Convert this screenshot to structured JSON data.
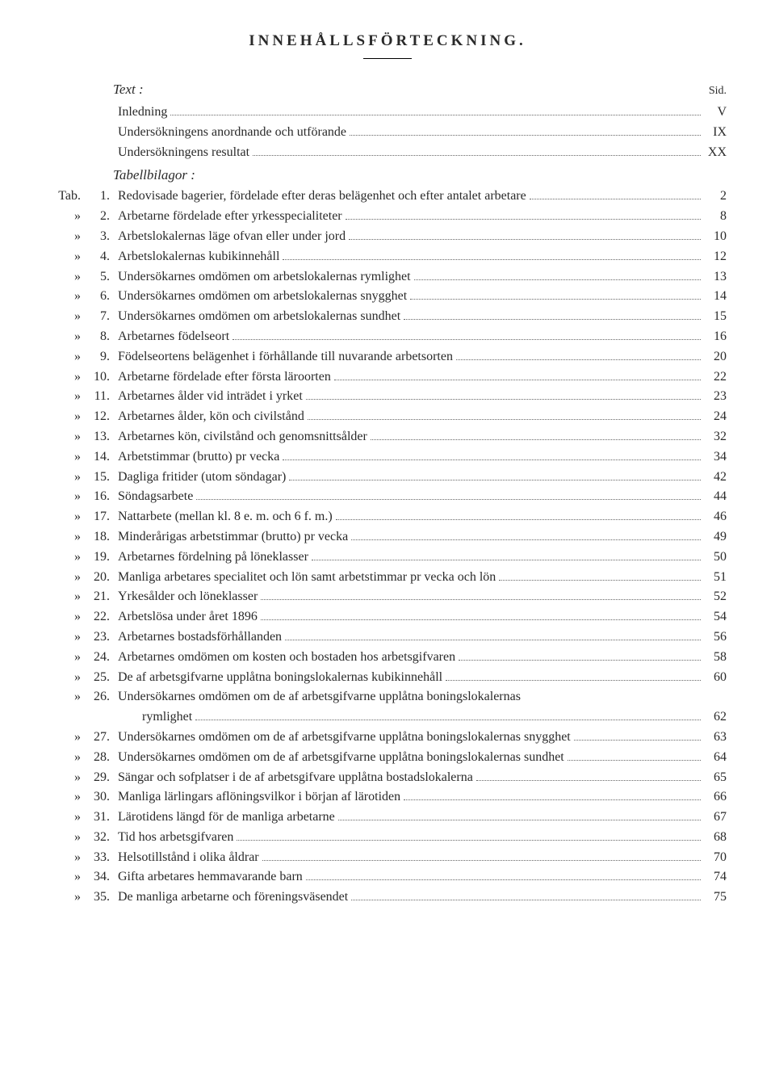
{
  "title": "INNEHÅLLSFÖRTECKNING.",
  "text_heading": "Text :",
  "sid_label": "Sid.",
  "text_entries": [
    {
      "label": "Inledning",
      "page": "V"
    },
    {
      "label": "Undersökningens anordnande och utförande",
      "page": "IX"
    },
    {
      "label": "Undersökningens resultat",
      "page": "XX"
    }
  ],
  "tabell_heading": "Tabellbilagor :",
  "tab_prefix_first": "Tab.",
  "tab_prefix_rest": "»",
  "tabs": [
    {
      "n": "1.",
      "label": "Redovisade bagerier, fördelade efter deras belägenhet och efter antalet arbetare",
      "page": "2"
    },
    {
      "n": "2.",
      "label": "Arbetarne fördelade efter yrkesspecialiteter",
      "page": "8"
    },
    {
      "n": "3.",
      "label": "Arbetslokalernas läge ofvan eller under jord",
      "page": "10"
    },
    {
      "n": "4.",
      "label": "Arbetslokalernas kubikinnehåll",
      "page": "12"
    },
    {
      "n": "5.",
      "label": "Undersökarnes omdömen om arbetslokalernas rymlighet",
      "page": "13"
    },
    {
      "n": "6.",
      "label": "Undersökarnes omdömen om arbetslokalernas snygghet",
      "page": "14"
    },
    {
      "n": "7.",
      "label": "Undersökarnes omdömen om arbetslokalernas sundhet",
      "page": "15"
    },
    {
      "n": "8.",
      "label": "Arbetarnes födelseort",
      "page": "16"
    },
    {
      "n": "9.",
      "label": "Födelseortens belägenhet i förhållande till nuvarande arbetsorten",
      "page": "20"
    },
    {
      "n": "10.",
      "label": "Arbetarne fördelade efter första läroorten",
      "page": "22"
    },
    {
      "n": "11.",
      "label": "Arbetarnes ålder vid inträdet i yrket",
      "page": "23"
    },
    {
      "n": "12.",
      "label": "Arbetarnes ålder, kön och civilstånd",
      "page": "24"
    },
    {
      "n": "13.",
      "label": "Arbetarnes kön, civilstånd och genomsnittsålder",
      "page": "32"
    },
    {
      "n": "14.",
      "label": "Arbetstimmar (brutto) pr vecka",
      "page": "34"
    },
    {
      "n": "15.",
      "label": "Dagliga fritider (utom söndagar)",
      "page": "42"
    },
    {
      "n": "16.",
      "label": "Söndagsarbete",
      "page": "44"
    },
    {
      "n": "17.",
      "label": "Nattarbete (mellan kl. 8 e. m. och 6 f. m.)",
      "page": "46"
    },
    {
      "n": "18.",
      "label": "Minderårigas arbetstimmar (brutto) pr vecka",
      "page": "49"
    },
    {
      "n": "19.",
      "label": "Arbetarnes fördelning på löneklasser",
      "page": "50"
    },
    {
      "n": "20.",
      "label": "Manliga arbetares specialitet och lön samt arbetstimmar pr vecka och lön",
      "page": "51"
    },
    {
      "n": "21.",
      "label": "Yrkesålder och löneklasser",
      "page": "52"
    },
    {
      "n": "22.",
      "label": "Arbetslösa under året 1896",
      "page": "54"
    },
    {
      "n": "23.",
      "label": "Arbetarnes bostadsförhållanden",
      "page": "56"
    },
    {
      "n": "24.",
      "label": "Arbetarnes omdömen om kosten och bostaden hos arbetsgifvaren",
      "page": "58"
    },
    {
      "n": "25.",
      "label": "De af arbetsgifvarne upplåtna boningslokalernas kubikinnehåll",
      "page": "60"
    },
    {
      "n": "26.",
      "label": "Undersökarnes omdömen om de af arbetsgifvarne upplåtna boningslokalernas",
      "label2": "rymlighet",
      "page": "62",
      "multiline": true
    },
    {
      "n": "27.",
      "label": "Undersökarnes omdömen om de af arbetsgifvarne upplåtna boningslokalernas snygghet",
      "page": "63"
    },
    {
      "n": "28.",
      "label": "Undersökarnes omdömen om de af arbetsgifvarne upplåtna boningslokalernas sundhet",
      "page": "64"
    },
    {
      "n": "29.",
      "label": "Sängar och sofplatser i de af arbetsgifvare upplåtna bostadslokalerna",
      "page": "65"
    },
    {
      "n": "30.",
      "label": "Manliga lärlingars aflöningsvilkor i början af lärotiden",
      "page": "66"
    },
    {
      "n": "31.",
      "label": "Lärotidens längd för de manliga arbetarne",
      "page": "67"
    },
    {
      "n": "32.",
      "label": "Tid hos arbetsgifvaren",
      "page": "68"
    },
    {
      "n": "33.",
      "label": "Helsotillstånd i olika åldrar",
      "page": "70"
    },
    {
      "n": "34.",
      "label": "Gifta arbetares hemmavarande barn",
      "page": "74"
    },
    {
      "n": "35.",
      "label": "De manliga arbetarne och föreningsväsendet",
      "page": "75"
    }
  ]
}
